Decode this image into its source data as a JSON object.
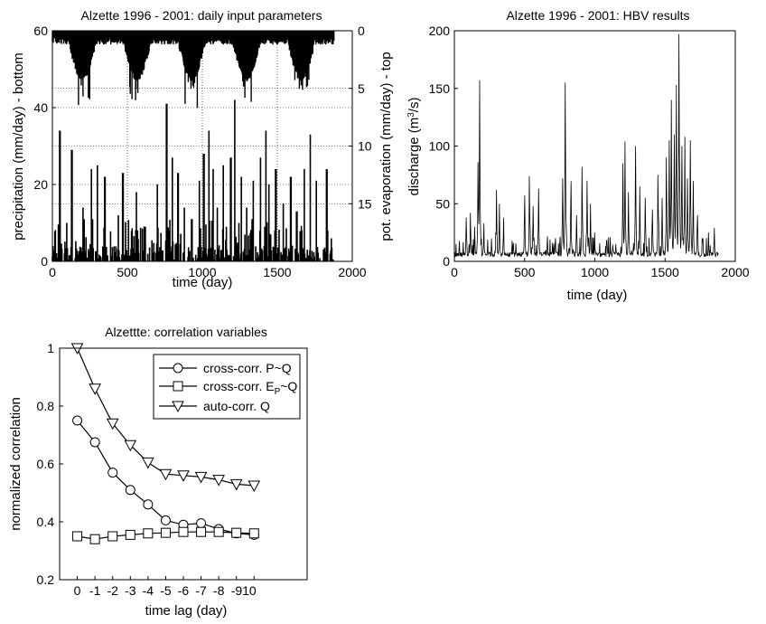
{
  "chart_data": [
    {
      "type": "bar",
      "title": "Alzette 1996 - 2001: daily input parameters",
      "xlabel": "time (day)",
      "ylabel": "precipitation (mm/day) - bottom",
      "ylabel_right": "pot. evaporation (mm/day) - top",
      "xlim": [
        0,
        2000
      ],
      "ylim": [
        0,
        60
      ],
      "xticks": [
        "0",
        "500",
        "1000",
        "1500",
        "2000"
      ],
      "yticks": [
        "0",
        "20",
        "40",
        "60"
      ],
      "yticks_right": [
        "0",
        "5",
        "10",
        "15"
      ],
      "right_axis_reversed": true,
      "right_axis_range": [
        0,
        20
      ],
      "grid": true,
      "series": [
        {
          "role": "precipitation",
          "x_start": 0,
          "x_end": 1880,
          "peaks": [
            [
              50,
              34
            ],
            [
              95,
              10
            ],
            [
              130,
              29
            ],
            [
              205,
              14
            ],
            [
              260,
              24
            ],
            [
              300,
              25
            ],
            [
              350,
              22
            ],
            [
              440,
              12
            ],
            [
              470,
              23
            ],
            [
              560,
              18
            ],
            [
              620,
              9
            ],
            [
              700,
              20
            ],
            [
              762,
              41
            ],
            [
              800,
              27
            ],
            [
              838,
              23
            ],
            [
              880,
              14
            ],
            [
              930,
              11
            ],
            [
              980,
              21
            ],
            [
              1010,
              28
            ],
            [
              1045,
              34
            ],
            [
              1072,
              24
            ],
            [
              1100,
              14
            ],
            [
              1140,
              25
            ],
            [
              1190,
              27
            ],
            [
              1215,
              42
            ],
            [
              1260,
              22
            ],
            [
              1295,
              14
            ],
            [
              1340,
              21
            ],
            [
              1388,
              27
            ],
            [
              1425,
              34
            ],
            [
              1445,
              20
            ],
            [
              1490,
              24
            ],
            [
              1540,
              15
            ],
            [
              1590,
              22
            ],
            [
              1630,
              13
            ],
            [
              1680,
              24
            ],
            [
              1720,
              33
            ],
            [
              1760,
              21
            ],
            [
              1830,
              24
            ],
            [
              1860,
              6
            ]
          ]
        },
        {
          "role": "pot. evaporation",
          "x_start": 0,
          "x_end": 1880,
          "annual_period_days": 365,
          "winter_level": 0.6,
          "summer_level": 3.8,
          "peak_evaporation": 6.5,
          "first_summer_day": 200
        }
      ]
    },
    {
      "type": "line",
      "title": "Alzette 1996 - 2001: HBV results",
      "xlabel": "time (day)",
      "ylabel": "discharge (m",
      "ylabel_sup": "3",
      "ylabel_tail": "/s)",
      "xlim": [
        0,
        2000
      ],
      "ylim": [
        0,
        200
      ],
      "xticks": [
        "0",
        "500",
        "1000",
        "1500",
        "2000"
      ],
      "yticks": [
        "0",
        "50",
        "100",
        "150",
        "200"
      ],
      "grid": false,
      "x_start": 0,
      "x_end": 1880,
      "baseflow": 4,
      "peaks": [
        [
          85,
          38
        ],
        [
          115,
          42
        ],
        [
          145,
          30
        ],
        [
          168,
          86
        ],
        [
          180,
          157
        ],
        [
          210,
          33
        ],
        [
          265,
          20
        ],
        [
          300,
          62
        ],
        [
          320,
          50
        ],
        [
          350,
          35
        ],
        [
          420,
          16
        ],
        [
          500,
          57
        ],
        [
          535,
          74
        ],
        [
          560,
          48
        ],
        [
          600,
          63
        ],
        [
          650,
          10
        ],
        [
          720,
          20
        ],
        [
          770,
          72
        ],
        [
          790,
          155
        ],
        [
          830,
          62
        ],
        [
          870,
          40
        ],
        [
          910,
          82
        ],
        [
          945,
          70
        ],
        [
          970,
          50
        ],
        [
          1000,
          25
        ],
        [
          1090,
          12
        ],
        [
          1150,
          15
        ],
        [
          1200,
          85
        ],
        [
          1215,
          104
        ],
        [
          1240,
          60
        ],
        [
          1290,
          100
        ],
        [
          1320,
          65
        ],
        [
          1360,
          55
        ],
        [
          1410,
          45
        ],
        [
          1450,
          75
        ],
        [
          1480,
          55
        ],
        [
          1510,
          90
        ],
        [
          1530,
          105
        ],
        [
          1545,
          140
        ],
        [
          1565,
          110
        ],
        [
          1580,
          153
        ],
        [
          1600,
          197
        ],
        [
          1620,
          100
        ],
        [
          1640,
          108
        ],
        [
          1660,
          72
        ],
        [
          1680,
          105
        ],
        [
          1700,
          60
        ],
        [
          1730,
          40
        ],
        [
          1770,
          20
        ],
        [
          1810,
          25
        ],
        [
          1850,
          28
        ]
      ]
    },
    {
      "type": "line",
      "title": "Alzettte: correlation variables",
      "xlabel": "time lag (day)",
      "ylabel": "normalized correlation",
      "xlim": [
        -1,
        13
      ],
      "ylim": [
        0.2,
        1.0
      ],
      "categories": [
        "0",
        "-1",
        "-2",
        "-3",
        "-4",
        "-5",
        "-6",
        "-7",
        "-8",
        "-9",
        "-10"
      ],
      "tick_text": [
        "0",
        "-1",
        "-2",
        "-3",
        "-4",
        "-5",
        "-6",
        "-7",
        "-8",
        "-910",
        ""
      ],
      "yticks": [
        "0.2",
        "0.4",
        "0.6",
        "0.8",
        "1"
      ],
      "legend_position": "top-right",
      "grid": false,
      "series": [
        {
          "name": "cross-corr. P~Q",
          "marker": "circle",
          "values": [
            0.75,
            0.675,
            0.57,
            0.51,
            0.46,
            0.405,
            0.39,
            0.395,
            0.375,
            0.36,
            0.355
          ]
        },
        {
          "name": "cross-corr. E",
          "name_sub": "P",
          "name_tail": "~Q",
          "marker": "square",
          "values": [
            0.35,
            0.34,
            0.35,
            0.355,
            0.36,
            0.362,
            0.365,
            0.365,
            0.365,
            0.362,
            0.36
          ]
        },
        {
          "name": "auto-corr. Q",
          "marker": "triangle-down",
          "values": [
            1.0,
            0.86,
            0.74,
            0.665,
            0.605,
            0.565,
            0.56,
            0.555,
            0.545,
            0.53,
            0.525
          ]
        }
      ]
    }
  ]
}
